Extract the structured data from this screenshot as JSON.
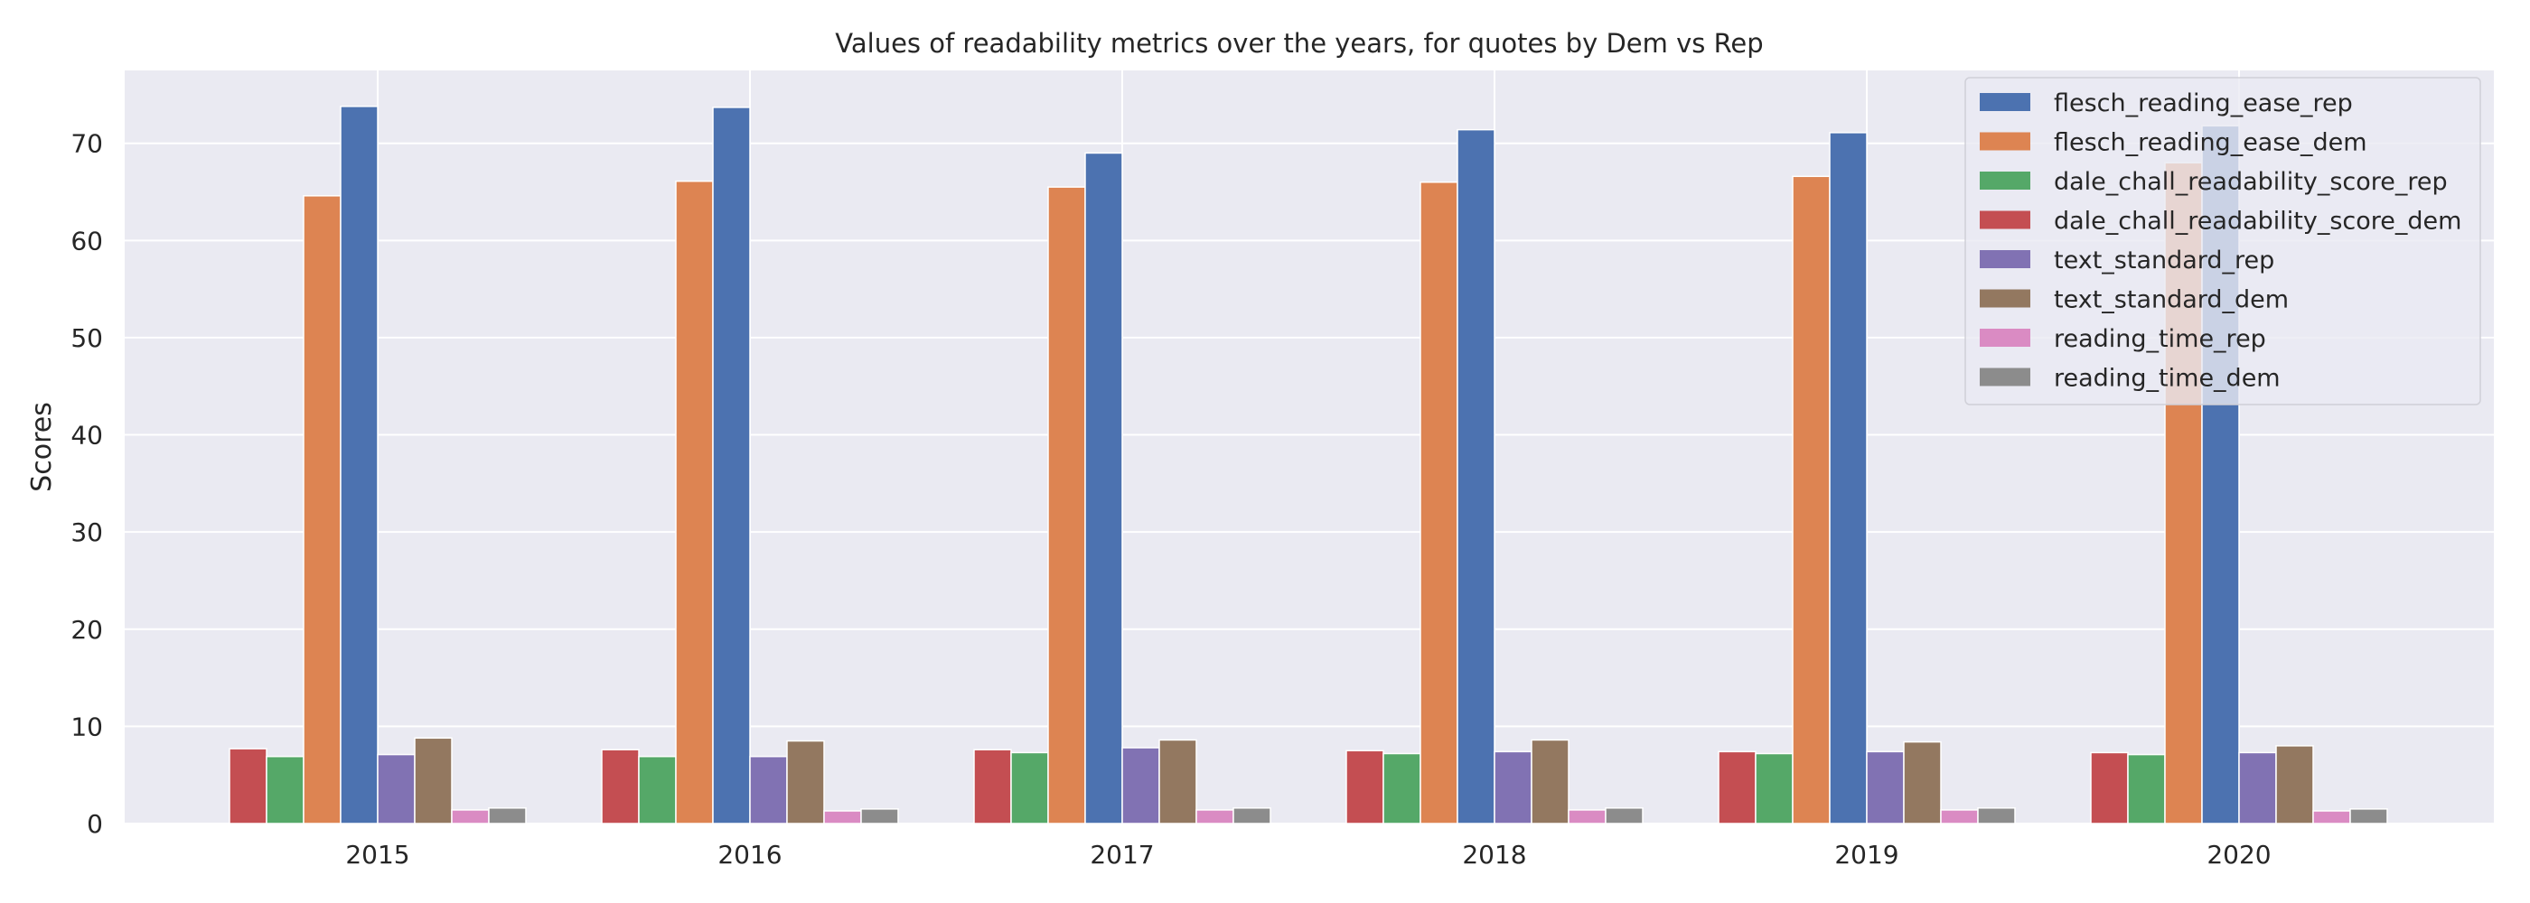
{
  "chart_data": {
    "type": "bar",
    "title": "Values of readability metrics over the years, for quotes by Dem vs Rep",
    "xlabel": "",
    "ylabel": "Scores",
    "categories": [
      "2015",
      "2016",
      "2017",
      "2018",
      "2019",
      "2020"
    ],
    "ylim": [
      0,
      77.5
    ],
    "yticks": [
      0,
      10,
      20,
      30,
      40,
      50,
      60,
      70
    ],
    "grid": true,
    "legend_position": "top-right",
    "bar_order": [
      "dale_chall_readability_score_dem",
      "dale_chall_readability_score_rep",
      "flesch_reading_ease_dem",
      "flesch_reading_ease_rep",
      "text_standard_rep",
      "text_standard_dem",
      "reading_time_rep",
      "reading_time_dem"
    ],
    "series": [
      {
        "name": "flesch_reading_ease_rep",
        "color": "#4c72b0",
        "values": [
          73.8,
          73.7,
          69.0,
          71.4,
          71.1,
          71.8
        ]
      },
      {
        "name": "flesch_reading_ease_dem",
        "color": "#dd8452",
        "values": [
          64.6,
          66.1,
          65.5,
          66.0,
          66.6,
          68.0
        ]
      },
      {
        "name": "dale_chall_readability_score_rep",
        "color": "#55a868",
        "values": [
          6.9,
          6.9,
          7.3,
          7.2,
          7.2,
          7.1
        ]
      },
      {
        "name": "dale_chall_readability_score_dem",
        "color": "#c44e52",
        "values": [
          7.7,
          7.6,
          7.6,
          7.5,
          7.4,
          7.3
        ]
      },
      {
        "name": "text_standard_rep",
        "color": "#8172b3",
        "values": [
          7.1,
          6.9,
          7.8,
          7.4,
          7.4,
          7.3
        ]
      },
      {
        "name": "text_standard_dem",
        "color": "#937860",
        "values": [
          8.8,
          8.5,
          8.6,
          8.6,
          8.4,
          8.0
        ]
      },
      {
        "name": "reading_time_rep",
        "color": "#da8bc3",
        "values": [
          1.4,
          1.3,
          1.4,
          1.4,
          1.4,
          1.3
        ]
      },
      {
        "name": "reading_time_dem",
        "color": "#8c8c8c",
        "values": [
          1.6,
          1.5,
          1.6,
          1.6,
          1.6,
          1.5
        ]
      }
    ]
  }
}
